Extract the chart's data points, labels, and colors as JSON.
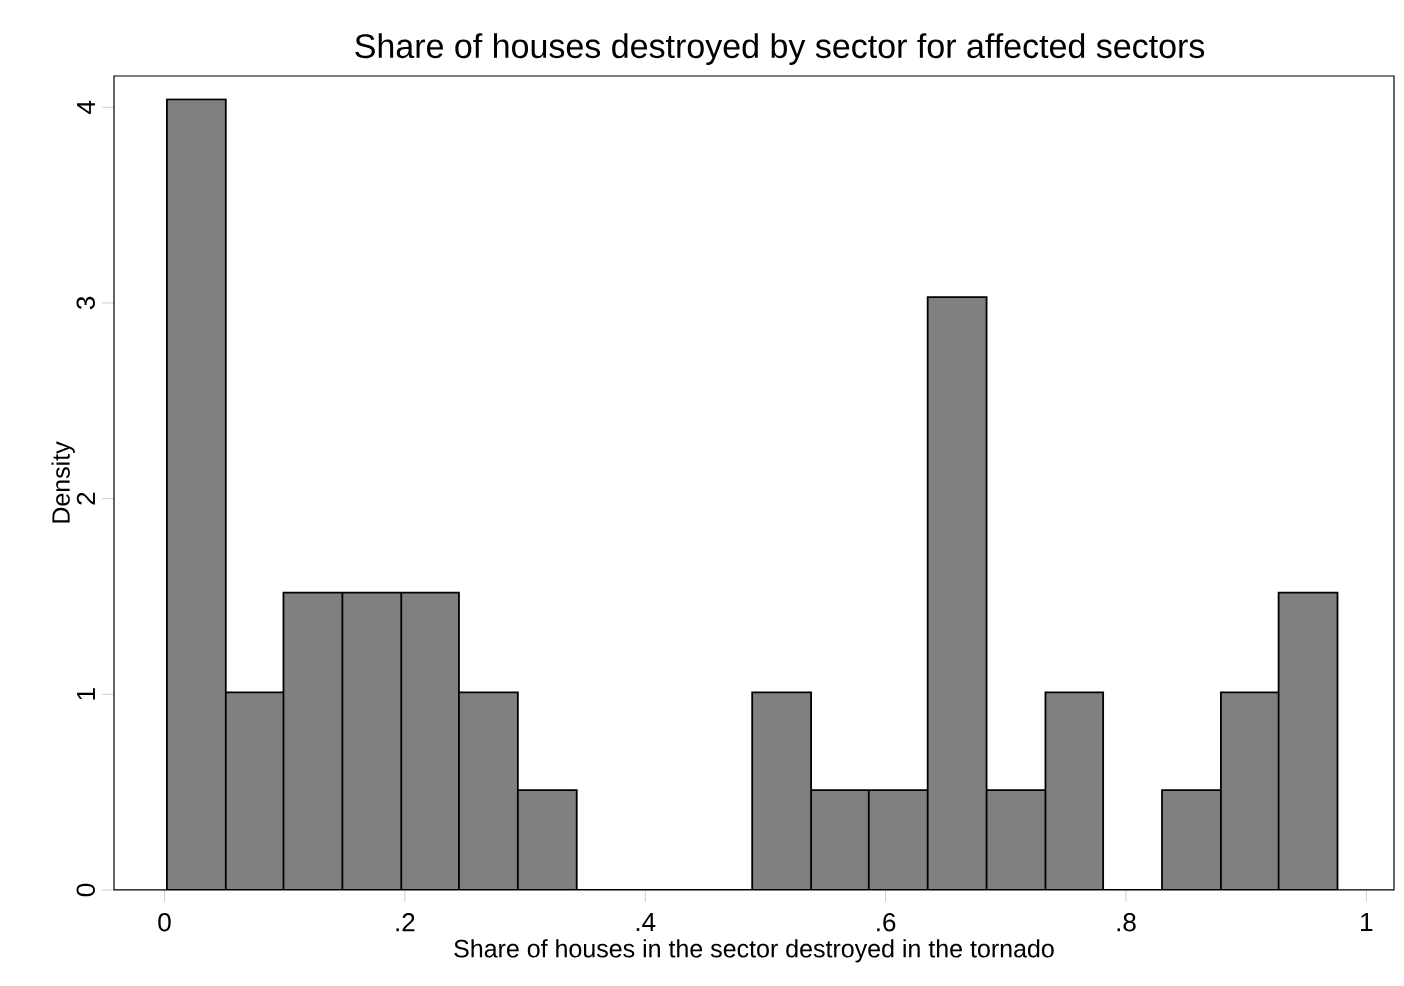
{
  "chart_data": {
    "type": "histogram",
    "title": "Share of houses destroyed by sector for affected sectors",
    "xlabel": "Share of houses in the sector destroyed in the tornado",
    "ylabel": "Density",
    "bins": [
      0.002,
      0.051,
      0.099,
      0.148,
      0.197,
      0.245,
      0.294,
      0.343,
      0.489,
      0.538,
      0.586,
      0.635,
      0.684,
      0.733,
      0.781,
      0.83,
      0.879,
      0.927,
      0.976
    ],
    "values": [
      4.04,
      1.01,
      1.52,
      1.52,
      1.52,
      1.01,
      0.51,
      0,
      1.01,
      0.51,
      0.51,
      3.03,
      0.51,
      1.01,
      0,
      0.51,
      1.01,
      1.52
    ],
    "color": "#808080",
    "xlim": [
      -0.042,
      1.023
    ],
    "ylim": [
      0,
      4.16
    ],
    "xticks": [
      0,
      {
        "value": 0.2,
        "label": ".2"
      },
      {
        "value": 0.4,
        "label": ".4"
      },
      {
        "value": 0.6,
        "label": ".6"
      },
      {
        "value": 0.8,
        "label": ".8"
      },
      1
    ],
    "yticks": [
      0,
      1,
      2,
      3,
      4
    ],
    "grid": false
  }
}
